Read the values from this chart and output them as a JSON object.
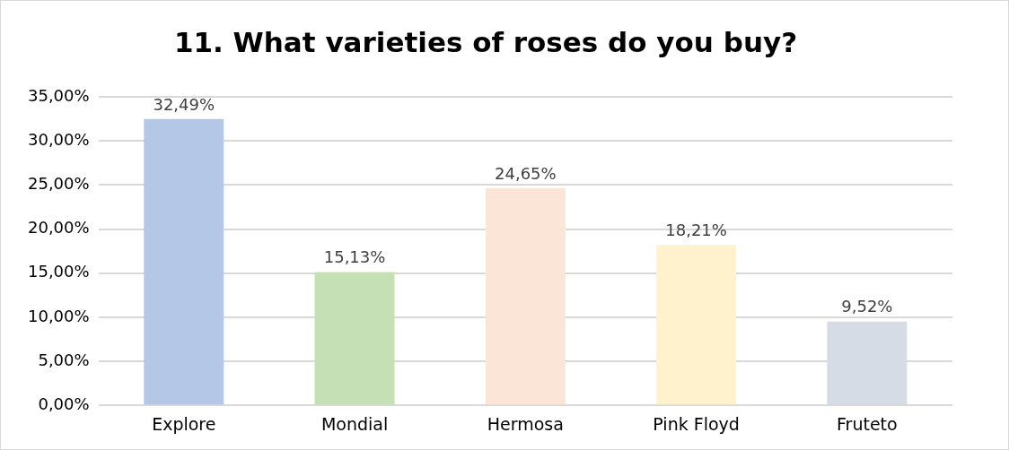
{
  "chart_data": {
    "type": "bar",
    "title": "11. What varieties of roses do you buy?",
    "categories": [
      "Explore",
      "Mondial",
      "Hermosa",
      "Pink Floyd",
      "Fruteto"
    ],
    "values": [
      32.49,
      15.13,
      24.65,
      18.21,
      9.52
    ],
    "colors": [
      "#b4c7e7",
      "#c5e0b4",
      "#fbe5d6",
      "#fff2cc",
      "#d6dce5"
    ],
    "value_labels": [
      "32,49%",
      "15,13%",
      "24,65%",
      "18,21%",
      "9,52%"
    ],
    "ylim": [
      0,
      35
    ],
    "yticks": [
      {
        "value": 0,
        "label": "0,00%"
      },
      {
        "value": 5,
        "label": "5,00%"
      },
      {
        "value": 10,
        "label": "10,00%"
      },
      {
        "value": 15,
        "label": "15,00%"
      },
      {
        "value": 20,
        "label": "20,00%"
      },
      {
        "value": 25,
        "label": "25,00%"
      },
      {
        "value": 30,
        "label": "30,00%"
      },
      {
        "value": 35,
        "label": "35,00%"
      }
    ],
    "grid": "y",
    "legend": false
  }
}
